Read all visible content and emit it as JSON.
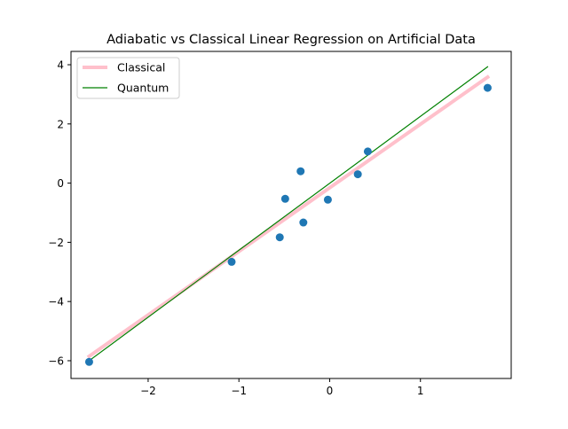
{
  "chart_data": {
    "type": "scatter",
    "title": "Adiabatic vs Classical Linear Regression on Artificial Data",
    "xlabel": "",
    "ylabel": "",
    "xlim": [
      -2.85,
      2.0
    ],
    "ylim": [
      -6.6,
      4.45
    ],
    "x_ticks": [
      -2,
      -1,
      0,
      1
    ],
    "x_tick_labels": [
      "−2",
      "−1",
      "0",
      "1"
    ],
    "y_ticks": [
      -6,
      -4,
      -2,
      0,
      2,
      4
    ],
    "y_tick_labels": [
      "−6",
      "−4",
      "−2",
      "0",
      "2",
      "4"
    ],
    "grid": false,
    "legend_position": "top-left",
    "points": {
      "color": "#1f77b4",
      "x": [
        -2.65,
        -1.08,
        -0.55,
        -0.49,
        -0.32,
        -0.29,
        -0.02,
        0.31,
        0.42,
        1.74
      ],
      "y": [
        -6.04,
        -2.66,
        -1.83,
        -0.53,
        0.4,
        -1.33,
        -0.56,
        0.3,
        1.07,
        3.22
      ]
    },
    "series": [
      {
        "name": "Classical",
        "color": "#ffc0cb",
        "x": [
          -2.65,
          1.74
        ],
        "y": [
          -5.85,
          3.58
        ]
      },
      {
        "name": "Quantum",
        "color": "#008000",
        "x": [
          -2.65,
          1.74
        ],
        "y": [
          -6.0,
          3.93
        ]
      }
    ]
  }
}
